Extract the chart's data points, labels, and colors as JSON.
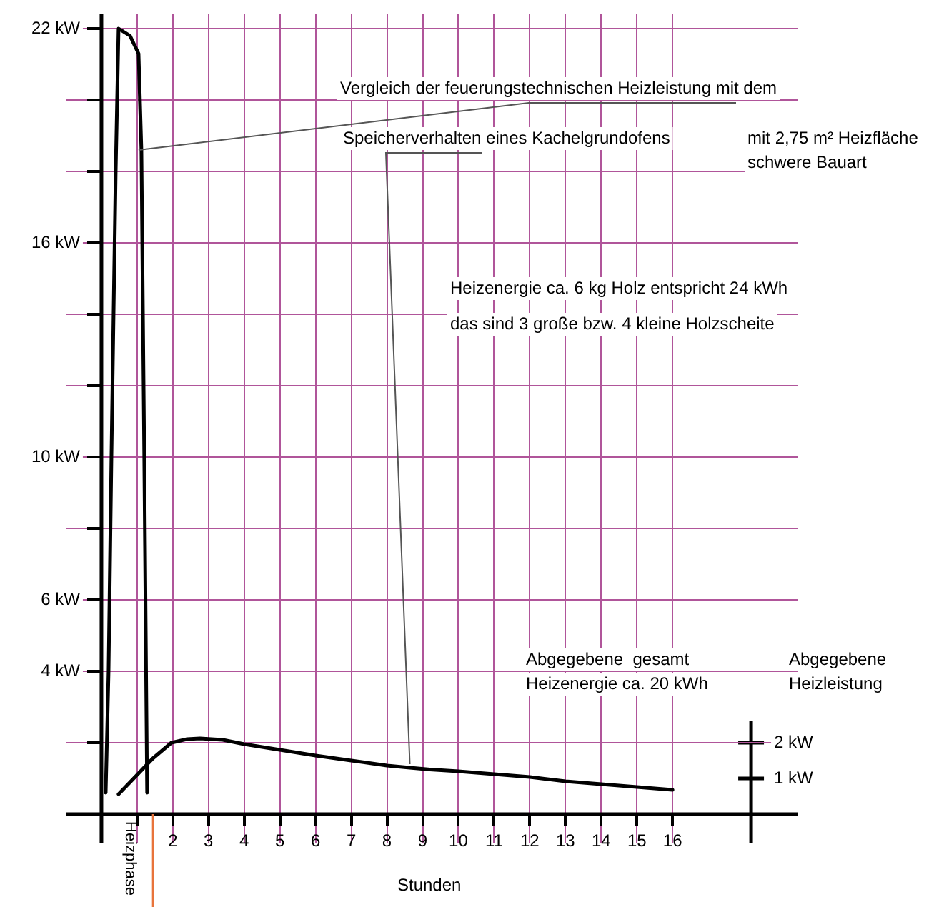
{
  "chart_data": {
    "type": "line",
    "xlabel": "Stunden",
    "y2label": "Abgegebene Heizleistung",
    "series": [
      {
        "color": "#000000",
        "x": [
          0.12,
          0.2,
          0.28,
          0.4,
          0.48,
          0.8,
          1.04,
          1.12,
          1.2,
          1.28
        ],
        "values": [
          0.6,
          4,
          10,
          18,
          22,
          21.8,
          21.3,
          18.6,
          10,
          0.6
        ]
      },
      {
        "color": "#000000",
        "x": [
          0.48,
          1.0,
          1.44,
          1.96,
          2.4,
          2.76,
          3.4,
          4.0,
          5.0,
          6.0,
          7.0,
          8.0,
          8.64,
          9.2,
          10,
          11,
          12,
          13,
          14,
          15,
          16
        ],
        "values": [
          0.56,
          1.1,
          1.56,
          2.0,
          2.1,
          2.12,
          2.08,
          1.96,
          1.8,
          1.64,
          1.5,
          1.36,
          1.3,
          1.25,
          1.2,
          1.12,
          1.04,
          0.92,
          0.84,
          0.76,
          0.68
        ]
      }
    ],
    "xlim": [
      -1,
      19.5
    ],
    "ylim": [
      -0.8,
      22.4
    ],
    "xticks": [
      {
        "value": 1,
        "label": null
      },
      2,
      3,
      4,
      5,
      6,
      7,
      8,
      9,
      10,
      11,
      12,
      13,
      14,
      15,
      16
    ],
    "yticks": [
      {
        "value": 2,
        "label": null
      },
      {
        "value": 4,
        "label": "4 kW"
      },
      {
        "value": 6,
        "label": "6 kW"
      },
      {
        "value": 8,
        "label": null
      },
      {
        "value": 10,
        "label": "10 kW"
      },
      {
        "value": 12,
        "label": null
      },
      {
        "value": 14,
        "label": null
      },
      {
        "value": 16,
        "label": "16 kW"
      },
      {
        "value": 18,
        "label": null
      },
      {
        "value": 20,
        "label": null
      },
      {
        "value": 22,
        "label": "22 kW"
      }
    ],
    "y2lim": [
      -0.8,
      22.4
    ],
    "y2ticks": [
      {
        "value": 1,
        "label": "1 kW"
      },
      {
        "value": 2,
        "label": "2 kW"
      }
    ],
    "ref_lines": [
      {
        "axis": "x",
        "value": 1.44,
        "label": "Heizphase",
        "color": "#e8743b"
      }
    ],
    "annotations": [
      {
        "text": "Vergleich der feuerungstechnischen Heizleistung mit dem",
        "x": 1.04,
        "y": 18.6
      },
      {
        "text": "Speicherverhalten eines Kachelgrundofens",
        "x": 8.64,
        "y": 1.4
      },
      "mit 2,75 m² Heizfläche",
      "schwere Bauart",
      "Heizenergie ca. 6 kg Holz entspricht 24 kWh",
      "das sind 3 große bzw. 4 kleine Holzscheite",
      "Abgegebene  gesamt Heizenergie ca. 20 kWh"
    ],
    "grid": true,
    "legend": false,
    "marker": "none",
    "line_style": "solid"
  }
}
